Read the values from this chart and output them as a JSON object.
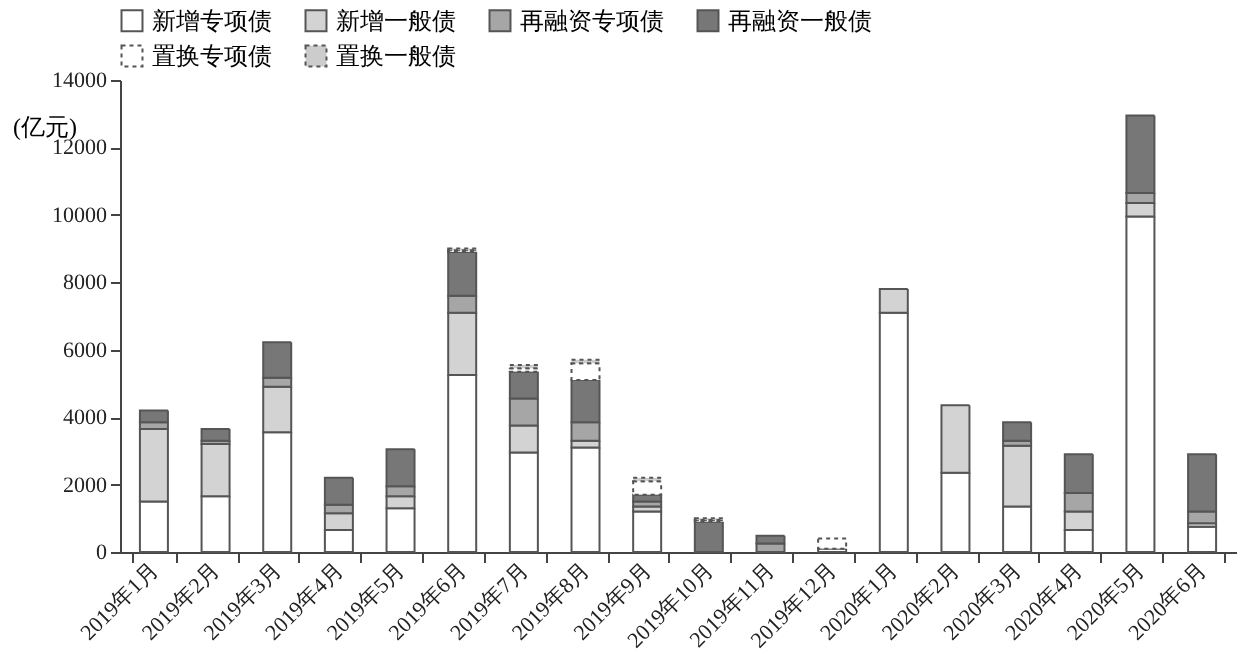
{
  "chart_data": {
    "type": "bar",
    "stacked": true,
    "ylabel": "(亿元)",
    "legend": "top",
    "grid": false,
    "categories": [
      "2019年1月",
      "2019年2月",
      "2019年3月",
      "2019年4月",
      "2019年5月",
      "2019年6月",
      "2019年7月",
      "2019年8月",
      "2019年9月",
      "2019年10月",
      "2019年11月",
      "2019年12月",
      "2020年1月",
      "2020年2月",
      "2020年3月",
      "2020年4月",
      "2020年5月",
      "2020年6月"
    ],
    "ylim": [
      0,
      14000
    ],
    "yticks": [
      0,
      2000,
      4000,
      6000,
      8000,
      10000,
      12000,
      14000
    ],
    "series": [
      {
        "name": "新增专项债",
        "color": "#ffffff",
        "line_style": "solid",
        "values": [
          1500,
          1650,
          3550,
          650,
          1300,
          5250,
          2950,
          3100,
          1200,
          0,
          0,
          100,
          7100,
          2350,
          1350,
          650,
          9950,
          750
        ]
      },
      {
        "name": "新增一般债",
        "color": "#d3d3d3",
        "line_style": "solid",
        "values": [
          2150,
          1550,
          1350,
          500,
          350,
          1850,
          800,
          200,
          150,
          0,
          0,
          0,
          700,
          2000,
          1800,
          550,
          400,
          100
        ]
      },
      {
        "name": "再融资专项债",
        "color": "#a6a6a6",
        "line_style": "solid",
        "values": [
          200,
          100,
          270,
          250,
          300,
          500,
          800,
          550,
          150,
          0,
          250,
          0,
          0,
          0,
          150,
          550,
          300,
          350
        ]
      },
      {
        "name": "再融资一般债",
        "color": "#777777",
        "line_style": "solid",
        "values": [
          350,
          350,
          1050,
          800,
          1100,
          1300,
          800,
          1250,
          200,
          900,
          230,
          0,
          0,
          0,
          550,
          1150,
          2300,
          1700
        ]
      },
      {
        "name": "置换专项债",
        "color": "#ffffff",
        "line_style": "dashed",
        "values": [
          0,
          0,
          0,
          0,
          0,
          50,
          100,
          500,
          400,
          50,
          0,
          300,
          0,
          0,
          0,
          0,
          0,
          0
        ]
      },
      {
        "name": "置换一般债",
        "color": "#cccccc",
        "line_style": "dashed",
        "values": [
          0,
          0,
          0,
          0,
          0,
          50,
          100,
          100,
          100,
          50,
          0,
          0,
          0,
          0,
          0,
          0,
          0,
          0
        ]
      }
    ]
  }
}
